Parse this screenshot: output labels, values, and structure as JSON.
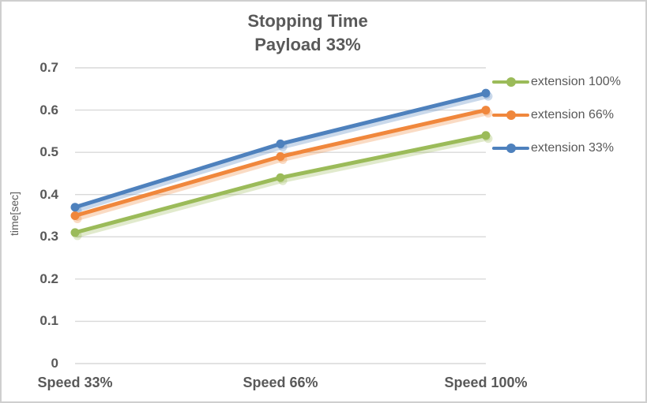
{
  "chart_data": {
    "type": "line",
    "title": "Stopping Time",
    "subtitle": "Payload 33%",
    "categories": [
      "Speed 33%",
      "Speed 66%",
      "Speed 100%"
    ],
    "series": [
      {
        "name": "extension 100%",
        "color": "#9BBB59",
        "values": [
          0.31,
          0.44,
          0.54
        ]
      },
      {
        "name": "extension 66%",
        "color": "#F0873C",
        "values": [
          0.35,
          0.49,
          0.6
        ]
      },
      {
        "name": "extension 33%",
        "color": "#4E81BD",
        "values": [
          0.37,
          0.52,
          0.64
        ]
      }
    ],
    "xlabel": "",
    "ylabel": "time[sec]",
    "ylim": [
      0,
      0.7
    ],
    "y_ticks": [
      "0",
      "0.1",
      "0.2",
      "0.3",
      "0.4",
      "0.5",
      "0.6",
      "0.7"
    ],
    "grid": "horizontal",
    "legend_position": "right",
    "marker": "circle",
    "line_shadow": true
  },
  "colors": {
    "text": "#595959",
    "grid": "#D9D9D9",
    "border": "#CFCFCF",
    "background": "#FFFFFF"
  }
}
